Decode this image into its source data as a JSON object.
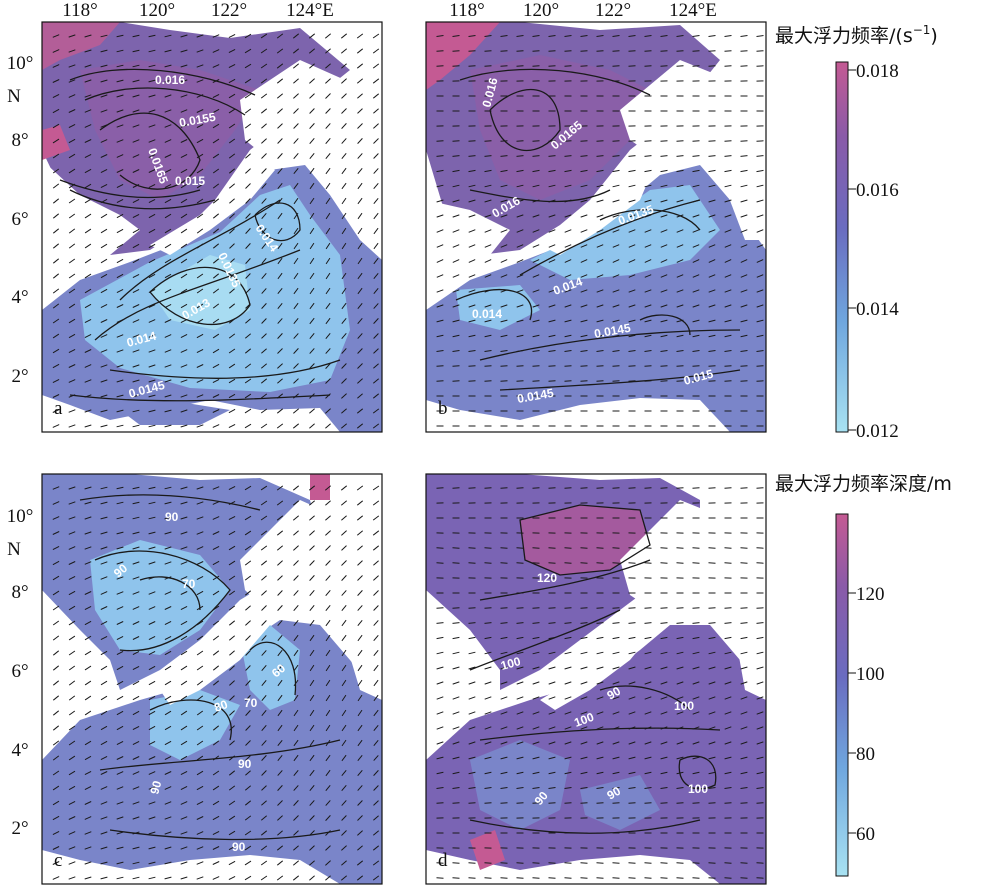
{
  "axes": {
    "lon_ticks": [
      "118°",
      "120°",
      "122°",
      "124°E"
    ],
    "lat_ticks_top": [
      "10°",
      "8°",
      "6°",
      "4°",
      "2°"
    ],
    "lat_ticks_bottom": [
      "10°",
      "8°",
      "6°",
      "4°",
      "2°"
    ],
    "n_label": "N"
  },
  "panels": [
    {
      "letter": "a",
      "labels": [
        "0.016",
        "0.0165",
        "0.0155",
        "0.015",
        "0.014",
        "0.0135",
        "0.013",
        "0.014",
        "0.0145"
      ]
    },
    {
      "letter": "b",
      "labels": [
        "0.016",
        "0.0165",
        "0.016",
        "0.0135",
        "0.014",
        "0.014",
        "0.0145",
        "0.0145",
        "0.015"
      ]
    },
    {
      "letter": "c",
      "labels": [
        "90",
        "90",
        "70",
        "80",
        "70",
        "60",
        "90",
        "90",
        "90"
      ]
    },
    {
      "letter": "d",
      "labels": [
        "120",
        "100",
        "90",
        "100",
        "100",
        "90",
        "90",
        "100"
      ]
    }
  ],
  "colorbar_top": {
    "title": "最大浮力频率/(s",
    "title_sup": "−1",
    "title_end": ")",
    "ticks": [
      "0.018",
      "0.016",
      "0.014",
      "0.012"
    ],
    "colors": {
      "high": "#c45a93",
      "mid": "#7b6cb8",
      "low": "#a8e2f2"
    }
  },
  "colorbar_bottom": {
    "title": "最大浮力频率深度/m",
    "ticks": [
      "120",
      "100",
      "80",
      "60"
    ],
    "colors": {
      "high": "#c45a93",
      "mid": "#7b6cb8",
      "low": "#a8e2f2"
    }
  }
}
